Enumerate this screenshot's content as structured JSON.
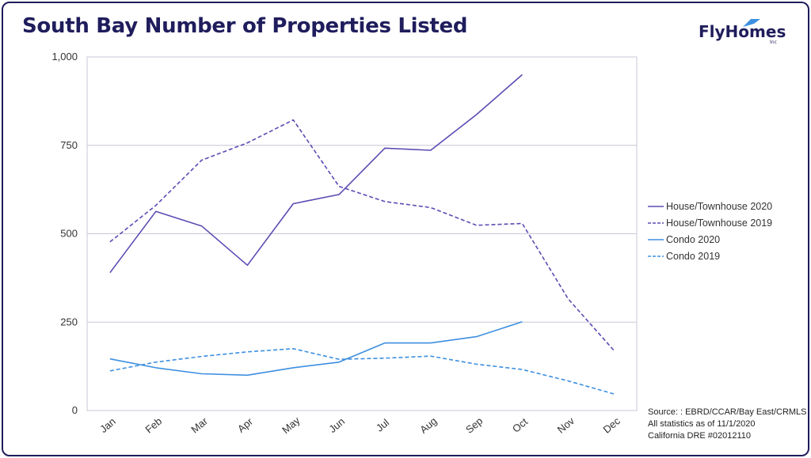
{
  "header": {
    "title": "South Bay Number of Properties Listed",
    "logo_text": "FlyHomes",
    "logo_suffix": "Inc"
  },
  "footer": {
    "source_lines": [
      "Source: : EBRD/CCAR/Bay East/CRMLS",
      "All statistics as of 11/1/2020",
      "California DRE #02012110"
    ]
  },
  "colors": {
    "house": "#5b4bb3",
    "condo": "#3d8fe0",
    "grid": "#c7c9d6",
    "title": "#1f1d5c"
  },
  "chart_data": {
    "type": "line",
    "title": "South Bay Number of Properties Listed",
    "xlabel": "",
    "ylabel": "",
    "categories": [
      "Jan",
      "Feb",
      "Mar",
      "Apr",
      "May",
      "Jun",
      "Jul",
      "Aug",
      "Sep",
      "Oct",
      "Nov",
      "Dec"
    ],
    "ylim": [
      0,
      1000
    ],
    "yticks": [
      0,
      250,
      500,
      750,
      1000
    ],
    "ytick_labels": [
      "0",
      "250",
      "500",
      "750",
      "1,000"
    ],
    "grid": true,
    "legend_position": "right",
    "series": [
      {
        "name": "House/Townhouse 2020",
        "color": "#5b4bb3",
        "dash": "solid",
        "values": [
          390,
          563,
          522,
          411,
          585,
          611,
          742,
          736,
          837,
          950,
          null,
          null
        ]
      },
      {
        "name": "House/Townhouse 2019",
        "color": "#5b4bb3",
        "dash": "dashed",
        "values": [
          477,
          580,
          708,
          757,
          822,
          634,
          591,
          574,
          524,
          529,
          316,
          170
        ]
      },
      {
        "name": "Condo 2020",
        "color": "#3d8fe0",
        "dash": "solid",
        "values": [
          146,
          121,
          104,
          100,
          121,
          137,
          191,
          191,
          209,
          251,
          null,
          null
        ]
      },
      {
        "name": "Condo 2019",
        "color": "#3d8fe0",
        "dash": "dashed",
        "values": [
          112,
          137,
          153,
          166,
          175,
          145,
          148,
          154,
          131,
          116,
          84,
          47
        ]
      }
    ]
  }
}
